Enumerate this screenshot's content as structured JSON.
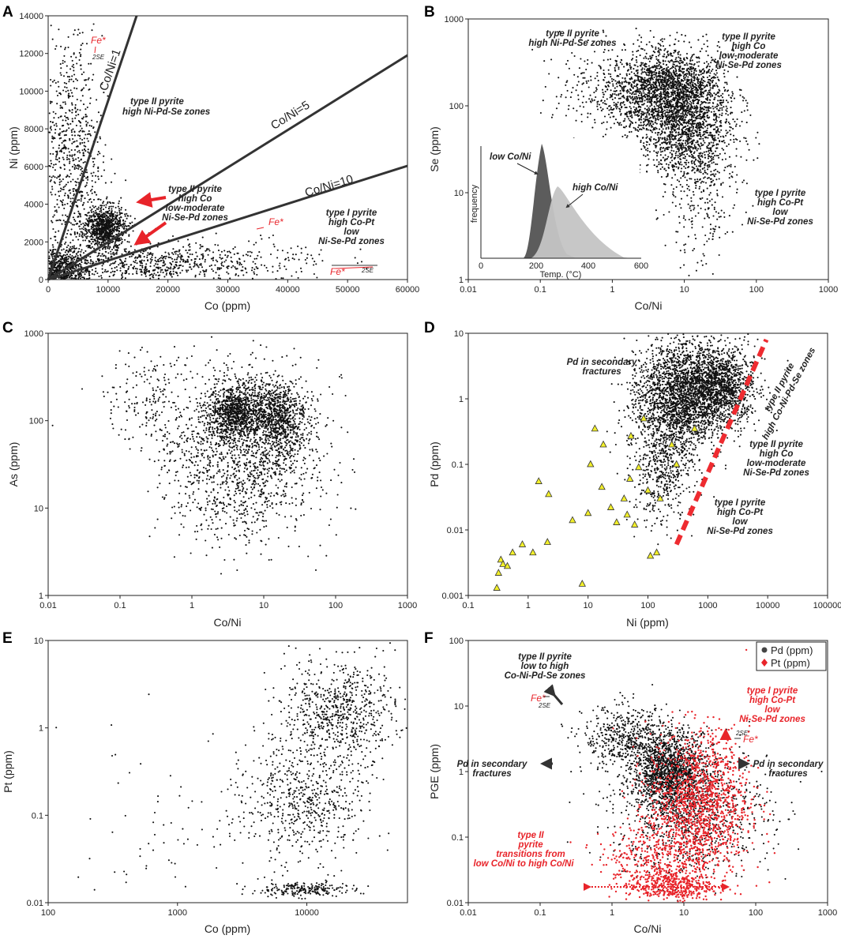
{
  "colors": {
    "dots": "#111111",
    "red": "#e8242a",
    "yellow": "#f2ef2a",
    "grey_dark": "#5c5c5c",
    "grey_light": "#c4c4c4"
  },
  "chart_data": [
    {
      "id": "A",
      "type": "scatter",
      "panel_label": "A",
      "xlabel": "Co (ppm)",
      "ylabel": "Ni (ppm)",
      "xscale": "linear",
      "yscale": "linear",
      "xlim": [
        0,
        60000
      ],
      "ylim": [
        0,
        14000
      ],
      "xticks": [
        0,
        10000,
        20000,
        30000,
        40000,
        50000,
        60000
      ],
      "yticks": [
        0,
        2000,
        4000,
        6000,
        8000,
        10000,
        12000,
        14000
      ],
      "xtick_labels": [
        "0",
        "10000",
        "20000",
        "30000",
        "40000",
        "50000",
        "60000"
      ],
      "ytick_labels": [
        "0",
        "2000",
        "4000",
        "6000",
        "8000",
        "10000",
        "12000",
        "14000"
      ],
      "ratio_lines": [
        {
          "label": "Co/Ni=1",
          "slope": 1
        },
        {
          "label": "Co/Ni=5",
          "slope": 0.2
        },
        {
          "label": "Co/Ni=10",
          "slope": 0.1
        }
      ],
      "annotations": [
        {
          "text": [
            "type II pyrite",
            "high Ni-Pd-Se zones"
          ]
        },
        {
          "text": [
            "type II pyrite",
            "high Co",
            "low-moderate",
            "Ni-Se-Pd zones"
          ]
        },
        {
          "text": [
            "type I pyrite",
            "high Co-Pt",
            "low",
            "Ni-Se-Pd zones"
          ]
        }
      ],
      "error_labels": {
        "fe": "Fe*",
        "se": "2SE"
      },
      "clusters": [
        {
          "cx": 9500,
          "cy": 2700,
          "sx": 1800,
          "sy": 600,
          "n": 900
        },
        {
          "cx": 2500,
          "cy": 600,
          "sx": 2200,
          "sy": 500,
          "n": 500
        },
        {
          "cx": 4000,
          "cy": 6500,
          "sx": 2500,
          "sy": 3200,
          "n": 700
        },
        {
          "cx": 15000,
          "cy": 900,
          "sx": 8000,
          "sy": 500,
          "n": 500
        },
        {
          "cx": 30000,
          "cy": 1000,
          "sx": 9000,
          "sy": 700,
          "n": 220
        }
      ]
    },
    {
      "id": "B",
      "type": "scatter",
      "panel_label": "B",
      "xlabel": "Co/Ni",
      "ylabel": "Se (ppm)",
      "xscale": "log",
      "yscale": "log",
      "xlim": [
        0.01,
        1000
      ],
      "ylim": [
        1,
        1000
      ],
      "xticks": [
        0.01,
        0.1,
        1,
        10,
        100,
        1000
      ],
      "yticks": [
        1,
        10,
        100,
        1000
      ],
      "xtick_labels": [
        "0.01",
        "0.1",
        "1",
        "10",
        "100",
        "1000"
      ],
      "ytick_labels": [
        "1",
        "10",
        "100",
        "1000"
      ],
      "annotations": [
        {
          "text": [
            "type II pyrite",
            "high Ni-Pd-Se zones"
          ]
        },
        {
          "text": [
            "type II pyrite",
            "high Co",
            "low-moderate",
            "Ni-Se-Pd zones"
          ]
        },
        {
          "text": [
            "type I pyrite",
            "high Co-Pt",
            "low",
            "Ni-Se-Pd zones"
          ]
        }
      ],
      "inset": {
        "type": "area",
        "xlabel": "Temp. (°C)",
        "ylabel": "frequency",
        "xticks": [
          0,
          200,
          400,
          600
        ],
        "xtick_labels": [
          "0",
          "200",
          "400",
          "600"
        ],
        "series": [
          {
            "name": "low Co/Ni",
            "peak_x": 210,
            "peak_y": 1.0,
            "width": 30
          },
          {
            "name": "high Co/Ni",
            "peak_x": 270,
            "peak_y": 0.65,
            "width": 55
          }
        ]
      },
      "clusters": [
        {
          "lx": 0.8,
          "ly": 2.2,
          "sx": 0.35,
          "sy": 0.22,
          "n": 1600
        },
        {
          "lx": 1.0,
          "ly": 1.75,
          "sx": 0.35,
          "sy": 0.28,
          "n": 1200
        },
        {
          "lx": 0.2,
          "ly": 2.15,
          "sx": 0.45,
          "sy": 0.25,
          "n": 500
        },
        {
          "lx": 1.25,
          "ly": 1.1,
          "sx": 0.25,
          "sy": 0.45,
          "n": 350
        }
      ]
    },
    {
      "id": "C",
      "type": "scatter",
      "panel_label": "C",
      "xlabel": "Co/Ni",
      "ylabel": "As (ppm)",
      "xscale": "log",
      "yscale": "log",
      "xlim": [
        0.01,
        1000
      ],
      "ylim": [
        1,
        1000
      ],
      "xticks": [
        0.01,
        0.1,
        1,
        10,
        100,
        1000
      ],
      "yticks": [
        1,
        10,
        100,
        1000
      ],
      "xtick_labels": [
        "0.01",
        "0.1",
        "1",
        "10",
        "100",
        "1000"
      ],
      "ytick_labels": [
        "1",
        "10",
        "100",
        "1000"
      ],
      "clusters": [
        {
          "lx": 0.6,
          "ly": 2.1,
          "sx": 0.18,
          "sy": 0.15,
          "n": 900
        },
        {
          "lx": 1.2,
          "ly": 2.05,
          "sx": 0.2,
          "sy": 0.2,
          "n": 800
        },
        {
          "lx": 0.7,
          "ly": 1.6,
          "sx": 0.55,
          "sy": 0.45,
          "n": 1500
        },
        {
          "lx": -0.6,
          "ly": 2.3,
          "sx": 0.35,
          "sy": 0.3,
          "n": 180
        }
      ]
    },
    {
      "id": "D",
      "type": "scatter",
      "panel_label": "D",
      "xlabel": "Ni (ppm)",
      "ylabel": "Pd (ppm)",
      "xscale": "log",
      "yscale": "log",
      "xlim": [
        0.1,
        100000
      ],
      "ylim": [
        0.001,
        10
      ],
      "xticks": [
        0.1,
        1,
        10,
        100,
        1000,
        10000,
        100000
      ],
      "yticks": [
        0.001,
        0.01,
        0.1,
        1,
        10
      ],
      "xtick_labels": [
        "0.1",
        "1",
        "10",
        "100",
        "1000",
        "10000",
        "100000"
      ],
      "ytick_labels": [
        "0.001",
        "0.01",
        "0.1",
        "1",
        "10"
      ],
      "annotations": [
        {
          "text": [
            "Pd in secondary",
            "fractures"
          ]
        },
        {
          "text": [
            "type II pyrite",
            "high Co-Ni-Pd-Se zones"
          ]
        },
        {
          "text": [
            "type II pyrite",
            "high Co",
            "low-moderate",
            "Ni-Se-Pd zones"
          ]
        },
        {
          "text": [
            "type I pyrite",
            "high Co-Pt",
            "low",
            "Ni-Se-Pd zones"
          ]
        }
      ],
      "trend_line": {
        "x": [
          300,
          9500
        ],
        "y": [
          0.006,
          8
        ]
      },
      "triangles": [
        [
          0.3,
          0.0013
        ],
        [
          0.32,
          0.0022
        ],
        [
          0.35,
          0.0035
        ],
        [
          0.38,
          0.003
        ],
        [
          0.45,
          0.0028
        ],
        [
          0.55,
          0.0045
        ],
        [
          0.8,
          0.006
        ],
        [
          1.2,
          0.0045
        ],
        [
          1.5,
          0.055
        ],
        [
          2.2,
          0.035
        ],
        [
          2.1,
          0.0065
        ],
        [
          5.5,
          0.014
        ],
        [
          8,
          0.0015
        ],
        [
          10,
          0.018
        ],
        [
          11,
          0.1
        ],
        [
          13,
          0.35
        ],
        [
          17,
          0.045
        ],
        [
          18,
          0.2
        ],
        [
          24,
          0.022
        ],
        [
          30,
          0.013
        ],
        [
          40,
          0.03
        ],
        [
          45,
          0.017
        ],
        [
          50,
          0.06
        ],
        [
          52,
          0.27
        ],
        [
          60,
          0.012
        ],
        [
          70,
          0.09
        ],
        [
          85,
          0.5
        ],
        [
          100,
          0.04
        ],
        [
          110,
          0.004
        ],
        [
          140,
          0.0045
        ],
        [
          160,
          0.03
        ],
        [
          250,
          0.2
        ],
        [
          300,
          0.1
        ],
        [
          600,
          0.35
        ]
      ],
      "clusters": [
        {
          "lx": 2.5,
          "ly": 0.0,
          "sx": 0.35,
          "sy": 0.45,
          "n": 2200
        },
        {
          "lx": 3.2,
          "ly": 0.2,
          "sx": 0.3,
          "sy": 0.3,
          "n": 1400
        },
        {
          "lx": 2.2,
          "ly": -1.2,
          "sx": 0.25,
          "sy": 0.35,
          "n": 400
        }
      ]
    },
    {
      "id": "E",
      "type": "scatter",
      "panel_label": "E",
      "xlabel": "Co (ppm)",
      "ylabel": "Pt (ppm)",
      "xscale": "log",
      "yscale": "log",
      "xlim": [
        100,
        60000
      ],
      "ylim": [
        0.01,
        10
      ],
      "xticks": [
        100,
        1000,
        10000
      ],
      "yticks": [
        0.01,
        0.1,
        1,
        10
      ],
      "xtick_labels": [
        "100",
        "1000",
        "10000"
      ],
      "ytick_labels": [
        "0.01",
        "0.1",
        "1",
        "10"
      ],
      "clusters": [
        {
          "lx": 4.25,
          "ly": 0.2,
          "sx": 0.22,
          "sy": 0.3,
          "n": 700
        },
        {
          "lx": 4.0,
          "ly": -0.8,
          "sx": 0.25,
          "sy": 0.35,
          "n": 600
        },
        {
          "lx": 3.95,
          "ly": -1.85,
          "sx": 0.18,
          "sy": 0.04,
          "n": 220
        },
        {
          "lx": 3.0,
          "ly": -1.1,
          "sx": 0.55,
          "sy": 0.5,
          "n": 90
        }
      ]
    },
    {
      "id": "F",
      "type": "scatter",
      "panel_label": "F",
      "xlabel": "Co/Ni",
      "ylabel": "PGE (ppm)",
      "xscale": "log",
      "yscale": "log",
      "xlim": [
        0.01,
        1000
      ],
      "ylim": [
        0.01,
        100
      ],
      "xticks": [
        0.01,
        0.1,
        1,
        10,
        100,
        1000
      ],
      "yticks": [
        0.01,
        0.1,
        1,
        10,
        100
      ],
      "xtick_labels": [
        "0.01",
        "0.1",
        "1",
        "10",
        "100",
        "1000"
      ],
      "ytick_labels": [
        "0.01",
        "0.1",
        "1",
        "10",
        "100"
      ],
      "legend": [
        {
          "name": "Pd (ppm)",
          "color": "#444444",
          "marker": "circle"
        },
        {
          "name": "Pt (ppm)",
          "color": "#e8242a",
          "marker": "diamond"
        }
      ],
      "annotations": [
        {
          "text": [
            "type II pyrite",
            "low to high",
            "Co-Ni-Pd-Se zones"
          ]
        },
        {
          "text": [
            "Pd in secondary",
            "fractures"
          ]
        },
        {
          "text": [
            "Pd in secondary",
            "fractures"
          ]
        },
        {
          "text": [
            "type I pyrite",
            "high Co-Pt",
            "low",
            "Ni-Se-Pd zones"
          ],
          "color": "red"
        },
        {
          "text": [
            "type II",
            "pyrite",
            "transitions from",
            "low Co/Ni to high Co/Ni"
          ],
          "color": "red"
        }
      ],
      "error_labels": {
        "fe": "Fe*",
        "se": "2SE"
      },
      "clusters": [
        {
          "lx": 0.8,
          "ly": 0.0,
          "sx": 0.25,
          "sy": 0.3,
          "n": 1500
        },
        {
          "lx": 0.2,
          "ly": 0.5,
          "sx": 0.3,
          "sy": 0.25,
          "n": 500
        },
        {
          "lx": 1.1,
          "ly": -0.6,
          "sx": 0.55,
          "sy": 0.5,
          "n": 900
        },
        {
          "lx": 1.2,
          "ly": -0.5,
          "sx": 0.35,
          "sy": 0.55,
          "n": 1400,
          "red": true
        },
        {
          "lx": 0.8,
          "ly": -1.75,
          "sx": 0.3,
          "sy": 0.12,
          "n": 400,
          "red": true
        },
        {
          "lx": 0.6,
          "ly": -1.3,
          "sx": 0.4,
          "sy": 0.25,
          "n": 300,
          "red": true
        }
      ]
    }
  ]
}
